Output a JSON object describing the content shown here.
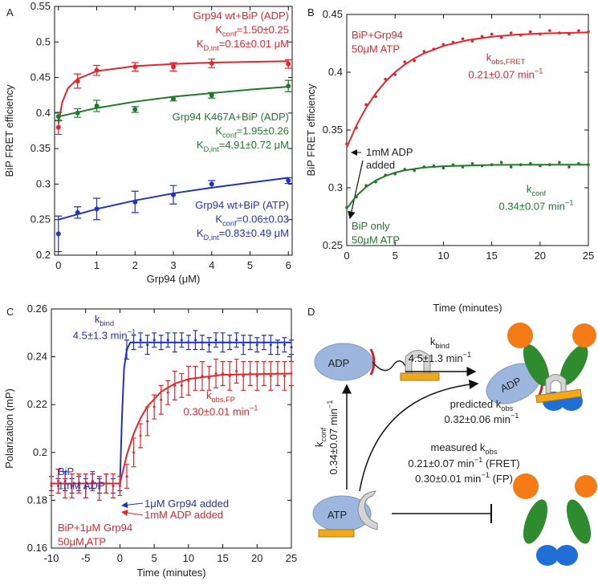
{
  "chart_data": [
    {
      "type": "scatter",
      "label": "A",
      "x_label": "Grp94 (μM)",
      "y_label": "BiP FRET efficiency",
      "xlim": [
        -0.1,
        6.1
      ],
      "xticks": [
        0,
        1,
        2,
        3,
        4,
        5,
        6
      ],
      "ylim": [
        0.2,
        0.55
      ],
      "yticks": [
        0.2,
        0.25,
        0.3,
        0.35,
        0.4,
        0.45,
        0.5,
        0.55
      ],
      "series": [
        {
          "mark": "point",
          "color": "#e8242a",
          "x": [
            0,
            0.5,
            1,
            2,
            3,
            4,
            6
          ],
          "values": [
            0.38,
            0.445,
            0.46,
            0.465,
            0.465,
            0.47,
            0.469
          ],
          "errors": [
            0.01,
            0.01,
            0.007,
            0.006,
            0.006,
            0.006,
            0.006
          ]
        },
        {
          "mark": "line",
          "color": "#e8242a",
          "x": [
            0,
            0.1,
            0.25,
            0.5,
            1,
            2,
            3,
            4,
            6
          ],
          "values": [
            0.385,
            0.415,
            0.435,
            0.448,
            0.459,
            0.466,
            0.469,
            0.471,
            0.473
          ]
        },
        {
          "mark": "point",
          "color": "#1f7a2a",
          "x": [
            0,
            0.5,
            1,
            2,
            3,
            4,
            6
          ],
          "values": [
            0.395,
            0.4,
            0.41,
            0.405,
            0.42,
            0.425,
            0.438
          ],
          "errors": [
            0.006,
            0.006,
            0.008,
            0.004,
            0.003,
            0.004,
            0.008
          ]
        },
        {
          "mark": "line",
          "color": "#1f7a2a",
          "x": [
            0,
            1,
            2,
            3,
            4,
            5,
            6
          ],
          "values": [
            0.395,
            0.407,
            0.416,
            0.423,
            0.428,
            0.433,
            0.437
          ]
        },
        {
          "mark": "point",
          "color": "#2233c0",
          "x": [
            0,
            0.5,
            1,
            2,
            3,
            4,
            6
          ],
          "values": [
            0.23,
            0.26,
            0.265,
            0.275,
            0.285,
            0.3,
            0.305
          ],
          "errors": [
            0.025,
            0.008,
            0.015,
            0.015,
            0.013,
            0.005,
            0.004
          ]
        },
        {
          "mark": "line",
          "color": "#2233c0",
          "x": [
            0,
            1,
            2,
            3,
            4,
            5,
            6
          ],
          "values": [
            0.25,
            0.265,
            0.277,
            0.287,
            0.295,
            0.302,
            0.309
          ]
        }
      ],
      "annotations": [
        {
          "color": "#e8242a",
          "lines": [
            "Grp94 wt+BiP (ADP)",
            [
              {
                "text": "K"
              },
              {
                "text": "conf",
                "shift": "sub"
              },
              {
                "text": "=1.50±0.25"
              }
            ],
            [
              {
                "text": "K"
              },
              {
                "text": "D,int",
                "shift": "sub"
              },
              {
                "text": "=0.16±0.01 μM"
              }
            ]
          ]
        },
        {
          "color": "#1f7a2a",
          "lines": [
            "Grp94 K467A+BiP (ADP)",
            [
              {
                "text": "K"
              },
              {
                "text": "conf",
                "shift": "sub"
              },
              {
                "text": "=1.95±0.26"
              }
            ],
            [
              {
                "text": "K"
              },
              {
                "text": "D,int",
                "shift": "sub"
              },
              {
                "text": "=4.91±0.72 μM"
              }
            ]
          ]
        },
        {
          "color": "#2233c0",
          "lines": [
            "Grp94 wt+BiP (ATP)",
            [
              {
                "text": "K"
              },
              {
                "text": "conf",
                "shift": "sub"
              },
              {
                "text": "=0.06±0.03"
              }
            ],
            [
              {
                "text": "K"
              },
              {
                "text": "D,int",
                "shift": "sub"
              },
              {
                "text": "=0.83±0.49 μM"
              }
            ]
          ]
        }
      ]
    },
    {
      "type": "scatter",
      "label": "B",
      "x_label": "Time (minutes)",
      "y_label": "BiP FRET efficiency",
      "xlim": [
        0,
        25
      ],
      "xticks": [
        0,
        5,
        10,
        15,
        20,
        25
      ],
      "ylim": [
        0.25,
        0.45
      ],
      "yticks": [
        0.25,
        0.3,
        0.35,
        0.4,
        0.45
      ],
      "series": [
        {
          "mark": "point",
          "color": "#e8242a",
          "x": [
            0,
            1,
            2,
            3,
            4,
            5,
            6,
            7,
            8,
            9,
            10,
            11,
            12,
            13,
            14,
            15,
            16,
            17,
            18,
            19,
            20,
            21,
            22,
            23,
            24,
            25
          ],
          "values": [
            0.338,
            0.352,
            0.372,
            0.379,
            0.394,
            0.398,
            0.409,
            0.41,
            0.418,
            0.42,
            0.424,
            0.426,
            0.429,
            0.427,
            0.431,
            0.433,
            0.43,
            0.434,
            0.432,
            0.435,
            0.433,
            0.436,
            0.434,
            0.433,
            0.436,
            0.435
          ]
        },
        {
          "mark": "line",
          "color": "#e8242a",
          "x": [
            0,
            1,
            2,
            3,
            4,
            5,
            6,
            7,
            8,
            10,
            12.5,
            15,
            17.5,
            20,
            25
          ],
          "values": [
            0.335,
            0.3539,
            0.3693,
            0.3817,
            0.3918,
            0.4,
            0.4066,
            0.412,
            0.4164,
            0.4228,
            0.4278,
            0.4307,
            0.4325,
            0.4335,
            0.4345
          ]
        },
        {
          "mark": "point",
          "color": "#1f7a2a",
          "x": [
            0,
            1,
            2,
            3,
            4,
            5,
            6,
            7,
            8,
            9,
            10,
            11,
            12,
            13,
            14,
            15,
            16,
            17,
            18,
            19,
            20,
            21,
            22,
            23,
            24,
            25
          ],
          "values": [
            0.283,
            0.292,
            0.302,
            0.305,
            0.311,
            0.312,
            0.316,
            0.315,
            0.318,
            0.319,
            0.317,
            0.32,
            0.318,
            0.321,
            0.319,
            0.32,
            0.322,
            0.318,
            0.32,
            0.321,
            0.319,
            0.32,
            0.322,
            0.318,
            0.321,
            0.32
          ]
        },
        {
          "mark": "line",
          "color": "#1f7a2a",
          "x": [
            0,
            1,
            2,
            3,
            4,
            5,
            6,
            8,
            10,
            15,
            20,
            25
          ],
          "values": [
            0.282,
            0.293,
            0.3007,
            0.3063,
            0.3102,
            0.3131,
            0.3151,
            0.3175,
            0.3187,
            0.3198,
            0.32,
            0.32
          ]
        }
      ],
      "annotations": [
        {
          "color": "#e8242a",
          "lines": [
            "BiP+Grp94",
            "50μM ATP"
          ]
        },
        {
          "color": "#e8242a",
          "lines": [
            [
              {
                "text": "k"
              },
              {
                "text": "obs,FRET",
                "shift": "sub"
              }
            ],
            [
              {
                "text": "0.21±0.07 min"
              },
              {
                "text": "−1",
                "shift": "sup"
              }
            ]
          ]
        },
        {
          "color": "#222222",
          "lines": [
            "1mM ADP",
            "added"
          ]
        },
        {
          "color": "#1f7a2a",
          "lines": [
            [
              {
                "text": "k"
              },
              {
                "text": "conf",
                "shift": "sub"
              }
            ],
            [
              {
                "text": "0.34±0.07 min"
              },
              {
                "text": "−1",
                "shift": "sup"
              }
            ]
          ]
        },
        {
          "color": "#1f7a2a",
          "lines": [
            "BiP only",
            "50μM ATP"
          ]
        }
      ]
    },
    {
      "type": "scatter",
      "label": "C",
      "x_label": "Time (minutes)",
      "y_label": "Polarization (mP)",
      "xlim": [
        -10,
        25
      ],
      "xticks": [
        -10,
        -5,
        0,
        5,
        10,
        15,
        20,
        25
      ],
      "ylim": [
        0.16,
        0.26
      ],
      "yticks": [
        0.16,
        0.18,
        0.2,
        0.22,
        0.24,
        0.26
      ],
      "series": [
        {
          "mark": "point",
          "color": "#2233c0",
          "x": [
            -10,
            -9,
            -8,
            -7,
            -6,
            -5,
            -4,
            -3,
            -2,
            -1,
            0,
            1,
            2,
            3,
            4,
            5,
            6,
            7,
            8,
            9,
            10,
            11,
            12,
            13,
            14,
            15,
            16,
            17,
            18,
            19,
            20,
            21,
            22,
            23,
            24,
            25
          ],
          "values": [
            0.187,
            0.186,
            0.188,
            0.186,
            0.187,
            0.185,
            0.188,
            0.186,
            0.187,
            0.186,
            0.187,
            0.243,
            0.246,
            0.247,
            0.245,
            0.247,
            0.246,
            0.247,
            0.246,
            0.247,
            0.246,
            0.247,
            0.246,
            0.245,
            0.247,
            0.246,
            0.246,
            0.247,
            0.245,
            0.246,
            0.245,
            0.246,
            0.245,
            0.244,
            0.245,
            0.244
          ],
          "errors": [
            0.003,
            0.003,
            0.004,
            0.003,
            0.003,
            0.004,
            0.003,
            0.003,
            0.004,
            0.003,
            0.003,
            0.004,
            0.003,
            0.003,
            0.004,
            0.003,
            0.003,
            0.003,
            0.004,
            0.003,
            0.003,
            0.004,
            0.003,
            0.003,
            0.003,
            0.004,
            0.003,
            0.003,
            0.004,
            0.003,
            0.003,
            0.003,
            0.004,
            0.003,
            0.003,
            0.003
          ]
        },
        {
          "mark": "line",
          "color": "#2233c0",
          "x": [
            -10,
            0,
            0.3,
            0.6,
            1,
            1.5,
            2,
            25
          ],
          "values": [
            0.187,
            0.187,
            0.215,
            0.235,
            0.243,
            0.246,
            0.246,
            0.246
          ]
        },
        {
          "mark": "point",
          "color": "#e8242a",
          "x": [
            -10,
            -9,
            -8,
            -7,
            -6,
            -5,
            -4,
            -3,
            -2,
            -1,
            0,
            1,
            2,
            3,
            4,
            5,
            6,
            7,
            8,
            9,
            10,
            11,
            12,
            13,
            14,
            15,
            16,
            17,
            18,
            19,
            20,
            21,
            22,
            23,
            24,
            25
          ],
          "values": [
            0.186,
            0.188,
            0.185,
            0.186,
            0.187,
            0.186,
            0.188,
            0.185,
            0.187,
            0.186,
            0.186,
            0.19,
            0.2,
            0.207,
            0.213,
            0.219,
            0.222,
            0.225,
            0.228,
            0.228,
            0.23,
            0.231,
            0.232,
            0.231,
            0.233,
            0.233,
            0.232,
            0.234,
            0.232,
            0.233,
            0.232,
            0.233,
            0.232,
            0.233,
            0.232,
            0.233
          ],
          "errors": [
            0.004,
            0.005,
            0.004,
            0.005,
            0.004,
            0.005,
            0.004,
            0.005,
            0.004,
            0.005,
            0.004,
            0.005,
            0.006,
            0.005,
            0.006,
            0.005,
            0.006,
            0.005,
            0.006,
            0.005,
            0.006,
            0.005,
            0.006,
            0.005,
            0.006,
            0.005,
            0.006,
            0.005,
            0.006,
            0.005,
            0.006,
            0.005,
            0.006,
            0.005,
            0.006,
            0.005
          ]
        },
        {
          "mark": "line",
          "color": "#e8242a",
          "x": [
            -10,
            0,
            1,
            2,
            3,
            4,
            6,
            8,
            10,
            15,
            25
          ],
          "values": [
            0.187,
            0.187,
            0.1989,
            0.2078,
            0.2143,
            0.2192,
            0.2254,
            0.2288,
            0.2307,
            0.2325,
            0.233
          ]
        }
      ],
      "annotations": [
        {
          "color": "#2233c0",
          "lines": [
            [
              {
                "text": "k"
              },
              {
                "text": "bind",
                "shift": "sub"
              }
            ],
            [
              {
                "text": "4.5±1.3 min"
              },
              {
                "text": "−1",
                "shift": "sup"
              }
            ]
          ]
        },
        {
          "color": "#e8242a",
          "lines": [
            [
              {
                "text": "k"
              },
              {
                "text": "obs,FP",
                "shift": "sub"
              }
            ],
            [
              {
                "text": "0.30±0.01 min"
              },
              {
                "text": "−1",
                "shift": "sup"
              }
            ]
          ]
        },
        {
          "color": "#2233c0",
          "lines": [
            "BiP",
            "1mM ADP"
          ]
        },
        {
          "color": "#e8242a",
          "lines": [
            "BiP+1μM Grp94",
            "50μM ATP"
          ]
        },
        {
          "color": "#2233c0",
          "lines": [
            "1μM Grp94 added"
          ]
        },
        {
          "color": "#e8242a",
          "lines": [
            "1mM ADP added"
          ]
        }
      ]
    }
  ],
  "diagram": {
    "label": "D",
    "adp_left": "ADP",
    "adp_right": "ADP",
    "atp": "ATP",
    "kbind": [
      {
        "text": "k"
      },
      {
        "text": "bind",
        "shift": "sub"
      }
    ],
    "kbind_value": [
      {
        "text": "4.5±1.3 min"
      },
      {
        "text": "−1",
        "shift": "sup"
      }
    ],
    "predicted": [
      {
        "text": "predicted k"
      },
      {
        "text": "obs",
        "shift": "sub"
      }
    ],
    "predicted_value": [
      {
        "text": "0.32±0.06 min"
      },
      {
        "text": "−1",
        "shift": "sup"
      }
    ],
    "measured": [
      {
        "text": "measured k"
      },
      {
        "text": "obs",
        "shift": "sub"
      }
    ],
    "measured_fret": [
      {
        "text": "0.21±0.07 min"
      },
      {
        "text": "−1",
        "shift": "sup"
      },
      {
        "text": " (FRET)"
      }
    ],
    "measured_fp": [
      {
        "text": "0.30±0.01 min"
      },
      {
        "text": "−1",
        "shift": "sup"
      },
      {
        "text": " (FP)"
      }
    ],
    "kconf": [
      {
        "text": "k"
      },
      {
        "text": "conf",
        "shift": "sub"
      }
    ],
    "kconf_value": [
      {
        "text": "0.34±0.07 min"
      },
      {
        "text": "−1",
        "shift": "sup"
      }
    ]
  }
}
